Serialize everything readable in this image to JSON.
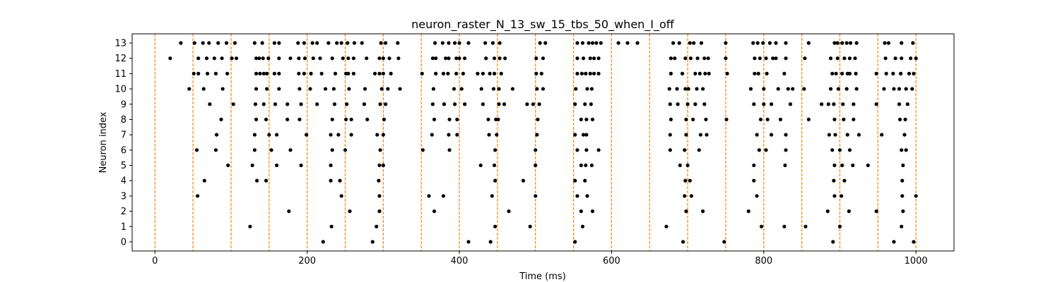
{
  "chart_data": {
    "type": "scatter",
    "title": "neuron_raster_N_13_sw_15_tbs_50_when_I_off",
    "xlabel": "Time (ms)",
    "ylabel": "Neuron index",
    "xlim": [
      -30,
      1050
    ],
    "ylim": [
      -0.6,
      13.6
    ],
    "x_ticks": [
      0,
      200,
      400,
      600,
      800,
      1000
    ],
    "y_ticks": [
      0,
      1,
      2,
      3,
      4,
      5,
      6,
      7,
      8,
      9,
      10,
      11,
      12,
      13
    ],
    "grid": false,
    "legend": "none",
    "colors": {
      "spikes": "#000000",
      "boundaries": "#ff7f0e"
    },
    "boundary_lines_x": [
      0,
      50,
      100,
      150,
      200,
      250,
      300,
      350,
      400,
      450,
      500,
      550,
      600,
      650,
      700,
      750,
      800,
      850,
      900,
      950,
      1000
    ],
    "series": [
      {
        "y": 0,
        "x": [
          221,
          286,
          412,
          441,
          552,
          694,
          748,
          891,
          971,
          997
        ]
      },
      {
        "y": 1,
        "x": [
          125,
          232,
          291,
          447,
          493,
          562,
          672,
          797,
          827,
          855,
          900,
          981
        ]
      },
      {
        "y": 2,
        "x": [
          176,
          256,
          295,
          367,
          465,
          560,
          575,
          698,
          720,
          780,
          884,
          912,
          948,
          983
        ]
      },
      {
        "y": 3,
        "x": [
          56,
          245,
          295,
          360,
          379,
          443,
          500,
          555,
          568,
          696,
          705,
          791,
          893,
          902,
          982,
          1000
        ]
      },
      {
        "y": 4,
        "x": [
          65,
          134,
          146,
          231,
          243,
          294,
          447,
          484,
          552,
          565,
          697,
          703,
          787,
          892,
          906,
          982
        ]
      },
      {
        "y": 5,
        "x": [
          96,
          128,
          160,
          192,
          231,
          295,
          300,
          428,
          446,
          500,
          560,
          566,
          574,
          690,
          700,
          787,
          828,
          893,
          903,
          917,
          937,
          983
        ]
      },
      {
        "y": 6,
        "x": [
          55,
          80,
          131,
          153,
          178,
          233,
          250,
          296,
          352,
          387,
          447,
          500,
          555,
          567,
          583,
          677,
          696,
          715,
          794,
          803,
          829,
          890,
          900,
          913,
          981,
          987
        ]
      },
      {
        "y": 7,
        "x": [
          81,
          131,
          150,
          160,
          199,
          231,
          241,
          258,
          292,
          300,
          364,
          386,
          397,
          439,
          449,
          502,
          552,
          563,
          567,
          677,
          698,
          717,
          725,
          791,
          810,
          829,
          886,
          894,
          910,
          925,
          955,
          985
        ]
      },
      {
        "y": 8,
        "x": [
          87,
          133,
          146,
          174,
          190,
          233,
          251,
          258,
          279,
          301,
          367,
          387,
          397,
          438,
          448,
          451,
          503,
          560,
          567,
          575,
          678,
          698,
          707,
          724,
          751,
          796,
          805,
          822,
          859,
          893,
          905,
          918,
          979,
          986
        ]
      },
      {
        "y": 9,
        "x": [
          72,
          103,
          132,
          143,
          158,
          174,
          192,
          213,
          236,
          252,
          275,
          296,
          303,
          365,
          380,
          394,
          407,
          431,
          452,
          459,
          489,
          497,
          505,
          552,
          565,
          573,
          677,
          687,
          700,
          710,
          722,
          787,
          800,
          810,
          835,
          876,
          885,
          892,
          904,
          918,
          948,
          978,
          989
        ]
      },
      {
        "y": 10,
        "x": [
          45,
          64,
          89,
          133,
          147,
          163,
          190,
          204,
          224,
          235,
          255,
          276,
          298,
          306,
          322,
          366,
          393,
          403,
          429,
          445,
          452,
          470,
          502,
          510,
          553,
          568,
          574,
          676,
          686,
          697,
          701,
          712,
          720,
          783,
          800,
          819,
          832,
          838,
          853,
          888,
          898,
          909,
          922,
          958,
          971,
          978,
          987,
          995
        ]
      },
      {
        "y": 11,
        "x": [
          51,
          57,
          69,
          80,
          95,
          133,
          138,
          143,
          147,
          157,
          163,
          189,
          196,
          205,
          219,
          237,
          251,
          254,
          261,
          289,
          295,
          300,
          310,
          351,
          369,
          379,
          385,
          396,
          405,
          424,
          431,
          440,
          446,
          455,
          501,
          508,
          555,
          561,
          566,
          572,
          577,
          583,
          678,
          693,
          710,
          716,
          723,
          728,
          752,
          788,
          793,
          804,
          827,
          890,
          895,
          903,
          910,
          913,
          921,
          948,
          961,
          970,
          980,
          991,
          997
        ]
      },
      {
        "y": 12,
        "x": [
          20,
          57,
          68,
          78,
          88,
          101,
          107,
          133,
          137,
          142,
          149,
          163,
          178,
          189,
          197,
          208,
          217,
          233,
          247,
          254,
          261,
          278,
          295,
          300,
          308,
          320,
          365,
          369,
          382,
          386,
          396,
          400,
          407,
          435,
          446,
          453,
          460,
          501,
          510,
          555,
          563,
          572,
          577,
          583,
          678,
          683,
          697,
          704,
          713,
          722,
          727,
          750,
          788,
          795,
          803,
          812,
          816,
          829,
          854,
          888,
          897,
          906,
          913,
          920,
          960,
          973,
          981,
          993,
          1000
        ]
      },
      {
        "y": 13,
        "x": [
          34,
          52,
          63,
          71,
          83,
          94,
          105,
          131,
          141,
          157,
          163,
          188,
          196,
          207,
          213,
          228,
          239,
          245,
          253,
          262,
          272,
          297,
          303,
          319,
          368,
          378,
          386,
          394,
          400,
          412,
          434,
          444,
          453,
          506,
          513,
          555,
          562,
          570,
          575,
          580,
          586,
          609,
          621,
          634,
          681,
          689,
          703,
          708,
          718,
          750,
          786,
          792,
          799,
          808,
          816,
          829,
          859,
          893,
          897,
          903,
          909,
          914,
          922,
          959,
          964,
          981,
          996
        ]
      }
    ]
  }
}
